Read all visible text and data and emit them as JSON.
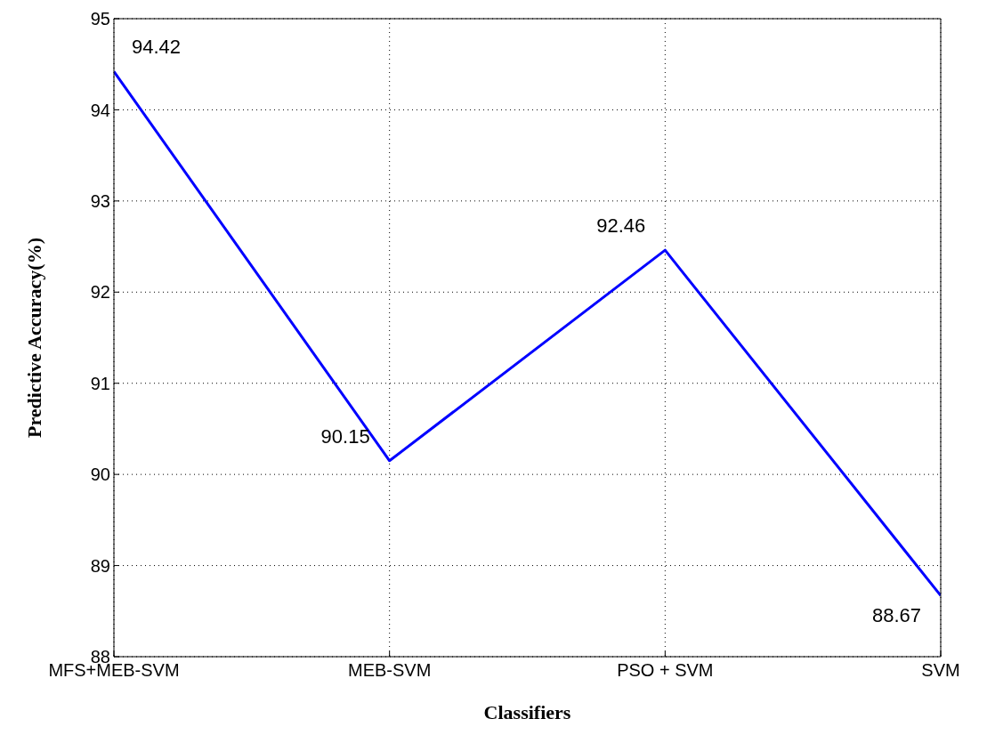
{
  "chart_data": {
    "type": "line",
    "xlabel": "Classifiers",
    "ylabel": "Predictive Accuracy(%)",
    "categories": [
      "MFS+MEB-SVM",
      "MEB-SVM",
      "PSO + SVM",
      "SVM"
    ],
    "series": [
      {
        "color": "#0000ff",
        "values": [
          94.42,
          90.15,
          92.46,
          88.67
        ]
      }
    ],
    "ylim": [
      88,
      95
    ],
    "yticks": [
      88,
      89,
      90,
      91,
      92,
      93,
      94,
      95
    ],
    "grid": true,
    "data_labels": true,
    "marker": "none",
    "line_style": "solid"
  }
}
